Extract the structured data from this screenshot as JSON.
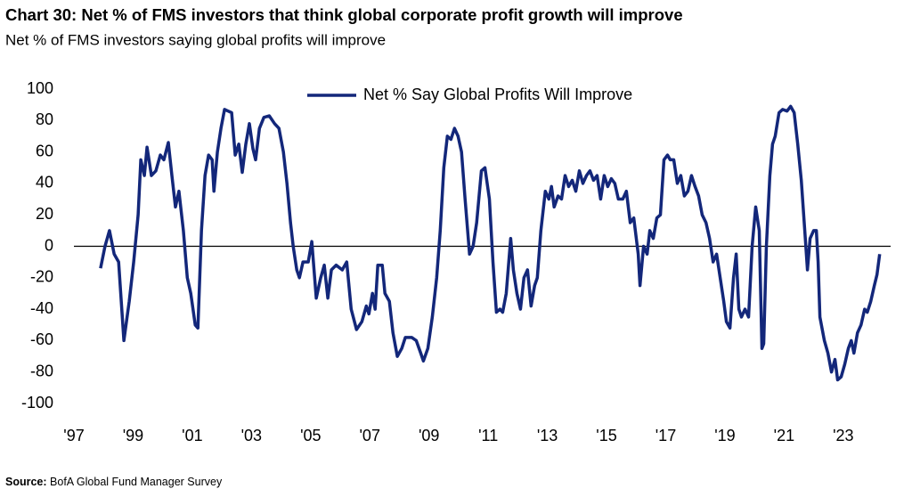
{
  "chart_data": {
    "type": "line",
    "title": "Chart 30: Net % of FMS investors that think global corporate profit growth will improve",
    "subtitle": "Net % of FMS investors saying global profits will improve",
    "source_label": "Source:",
    "source": "BofA Global Fund Manager Survey",
    "x": [
      1997.9,
      1998.05,
      1998.2,
      1998.36,
      1998.51,
      1998.69,
      1998.87,
      1999.02,
      1999.17,
      1999.26,
      1999.38,
      1999.47,
      1999.62,
      1999.77,
      1999.92,
      2000.04,
      2000.19,
      2000.31,
      2000.43,
      2000.55,
      2000.7,
      2000.83,
      2000.95,
      2001.1,
      2001.19,
      2001.31,
      2001.43,
      2001.55,
      2001.67,
      2001.73,
      2001.85,
      2001.97,
      2002.09,
      2002.33,
      2002.45,
      2002.57,
      2002.69,
      2002.81,
      2002.93,
      2003.05,
      2003.14,
      2003.27,
      2003.42,
      2003.6,
      2003.78,
      2003.93,
      2004.08,
      2004.2,
      2004.32,
      2004.41,
      2004.53,
      2004.62,
      2004.74,
      2004.92,
      2005.04,
      2005.19,
      2005.34,
      2005.46,
      2005.58,
      2005.7,
      2005.86,
      2006.07,
      2006.22,
      2006.37,
      2006.55,
      2006.73,
      2006.88,
      2006.97,
      2007.09,
      2007.18,
      2007.27,
      2007.42,
      2007.51,
      2007.66,
      2007.78,
      2007.93,
      2008.08,
      2008.2,
      2008.42,
      2008.57,
      2008.72,
      2008.81,
      2008.96,
      2009.11,
      2009.26,
      2009.38,
      2009.5,
      2009.62,
      2009.74,
      2009.86,
      2009.98,
      2010.1,
      2010.22,
      2010.37,
      2010.49,
      2010.61,
      2010.77,
      2010.89,
      2011.04,
      2011.16,
      2011.28,
      2011.4,
      2011.49,
      2011.61,
      2011.76,
      2011.85,
      2011.97,
      2012.09,
      2012.21,
      2012.33,
      2012.45,
      2012.57,
      2012.66,
      2012.78,
      2012.93,
      2013.05,
      2013.14,
      2013.23,
      2013.36,
      2013.48,
      2013.6,
      2013.72,
      2013.84,
      2013.96,
      2014.08,
      2014.2,
      2014.32,
      2014.44,
      2014.56,
      2014.68,
      2014.8,
      2014.92,
      2015.04,
      2015.16,
      2015.28,
      2015.4,
      2015.55,
      2015.67,
      2015.8,
      2015.92,
      2016.07,
      2016.13,
      2016.25,
      2016.37,
      2016.46,
      2016.58,
      2016.7,
      2016.82,
      2016.94,
      2017.06,
      2017.15,
      2017.27,
      2017.39,
      2017.51,
      2017.63,
      2017.75,
      2017.87,
      2017.99,
      2018.11,
      2018.23,
      2018.36,
      2018.48,
      2018.6,
      2018.72,
      2018.84,
      2018.96,
      2019.05,
      2019.17,
      2019.29,
      2019.38,
      2019.47,
      2019.56,
      2019.68,
      2019.8,
      2019.92,
      2020.04,
      2020.16,
      2020.25,
      2020.31,
      2020.4,
      2020.52,
      2020.61,
      2020.7,
      2020.83,
      2020.95,
      2021.1,
      2021.22,
      2021.34,
      2021.46,
      2021.58,
      2021.7,
      2021.79,
      2021.88,
      2022.0,
      2022.09,
      2022.15,
      2022.21,
      2022.36,
      2022.48,
      2022.6,
      2022.72,
      2022.81,
      2022.93,
      2023.05,
      2023.17,
      2023.27,
      2023.36,
      2023.48,
      2023.6,
      2023.72,
      2023.81,
      2023.93,
      2024.05,
      2024.14,
      2024.23
    ],
    "series": [
      {
        "name": "Net % Say Global Profits Will Improve",
        "color": "#13277a",
        "values": [
          -14,
          0,
          10,
          -5,
          -10,
          -60,
          -35,
          -10,
          20,
          55,
          45,
          63,
          45,
          48,
          58,
          55,
          66,
          45,
          25,
          35,
          10,
          -20,
          -30,
          -50,
          -52,
          10,
          45,
          58,
          55,
          35,
          60,
          75,
          87,
          85,
          58,
          65,
          47,
          65,
          78,
          62,
          55,
          75,
          82,
          83,
          78,
          75,
          60,
          40,
          15,
          0,
          -15,
          -20,
          -10,
          -10,
          3,
          -33,
          -20,
          -12,
          -33,
          -15,
          -12,
          -15,
          -10,
          -40,
          -53,
          -48,
          -38,
          -43,
          -30,
          -40,
          -12,
          -12,
          -30,
          -35,
          -55,
          -70,
          -65,
          -58,
          -58,
          -60,
          -68,
          -73,
          -65,
          -45,
          -20,
          10,
          50,
          70,
          68,
          75,
          70,
          60,
          30,
          -5,
          0,
          15,
          48,
          50,
          30,
          -10,
          -42,
          -40,
          -42,
          -30,
          5,
          -15,
          -30,
          -40,
          -20,
          -15,
          -38,
          -25,
          -20,
          10,
          35,
          30,
          38,
          25,
          32,
          30,
          45,
          38,
          42,
          35,
          48,
          40,
          45,
          48,
          42,
          45,
          30,
          45,
          38,
          43,
          40,
          30,
          30,
          35,
          15,
          18,
          -5,
          -25,
          0,
          -5,
          10,
          5,
          18,
          20,
          55,
          58,
          55,
          55,
          40,
          45,
          32,
          35,
          45,
          38,
          32,
          20,
          15,
          5,
          -10,
          -5,
          -20,
          -35,
          -48,
          -52,
          -20,
          -5,
          -40,
          -45,
          -40,
          -45,
          0,
          25,
          10,
          -65,
          -62,
          0,
          45,
          65,
          70,
          85,
          87,
          86,
          89,
          85,
          65,
          42,
          10,
          -15,
          5,
          10,
          10,
          -10,
          -45,
          -60,
          -68,
          -80,
          -72,
          -85,
          -83,
          -75,
          -65,
          -60,
          -68,
          -55,
          -50,
          -40,
          -42,
          -35,
          -25,
          -18,
          -5
        ]
      }
    ],
    "xlim": [
      1997,
      2024.6
    ],
    "xticks": [
      {
        "value": 1997,
        "label": "'97"
      },
      {
        "value": 1999,
        "label": "'99"
      },
      {
        "value": 2001,
        "label": "'01"
      },
      {
        "value": 2003,
        "label": "'03"
      },
      {
        "value": 2005,
        "label": "'05"
      },
      {
        "value": 2007,
        "label": "'07"
      },
      {
        "value": 2009,
        "label": "'09"
      },
      {
        "value": 2011,
        "label": "'11"
      },
      {
        "value": 2013,
        "label": "'13"
      },
      {
        "value": 2015,
        "label": "'15"
      },
      {
        "value": 2017,
        "label": "'17"
      },
      {
        "value": 2019,
        "label": "'19"
      },
      {
        "value": 2021,
        "label": "'21"
      },
      {
        "value": 2023,
        "label": "'23"
      }
    ],
    "ylim": [
      -100,
      100
    ],
    "yticks": [
      -100,
      -80,
      -60,
      -40,
      -20,
      0,
      20,
      40,
      60,
      80,
      100
    ],
    "grid": false,
    "legend": "top"
  }
}
